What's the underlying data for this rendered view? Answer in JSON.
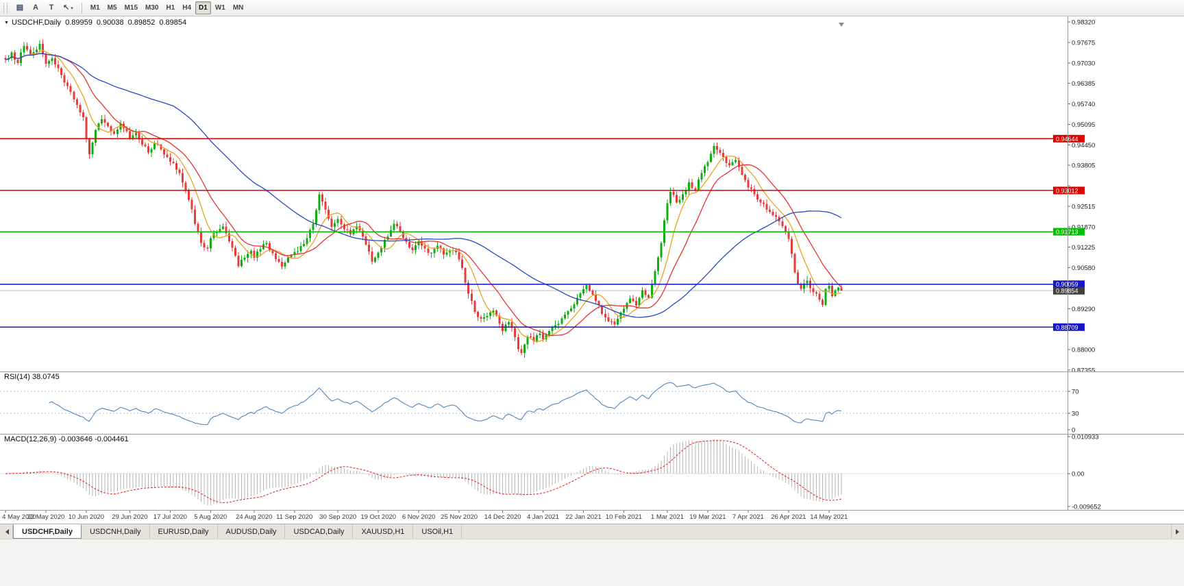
{
  "icons": {
    "chart_menu": "▼",
    "dropdown_caret": "▾"
  },
  "toolbar": {
    "tools": [
      {
        "name": "charts-grid-tool",
        "glyph": "▤"
      },
      {
        "name": "text-annotation-tool",
        "glyph": "A"
      },
      {
        "name": "template-tool",
        "glyph": "T"
      },
      {
        "name": "cursor-tool",
        "glyph": "↖",
        "dropdown": true
      }
    ],
    "timeframes": [
      {
        "label": "M1"
      },
      {
        "label": "M5"
      },
      {
        "label": "M15"
      },
      {
        "label": "M30"
      },
      {
        "label": "H1"
      },
      {
        "label": "H4"
      },
      {
        "label": "D1",
        "active": true
      },
      {
        "label": "W1"
      },
      {
        "label": "MN"
      }
    ]
  },
  "chart": {
    "symbol": "USDCHF,Daily",
    "ohlc": {
      "open": "0.89959",
      "high": "0.90038",
      "low": "0.89852",
      "close": "0.89854"
    },
    "y_axis": {
      "min": 0.87355,
      "max": 0.9832,
      "step": 0.00645,
      "labels": [
        "0.98320",
        "0.97675",
        "0.97030",
        "0.96385",
        "0.95740",
        "0.95095",
        "0.94450",
        "0.93805",
        "0.93160",
        "0.92515",
        "0.91870",
        "0.91225",
        "0.90580",
        "0.89935",
        "0.89290",
        "0.88645",
        "0.88000",
        "0.87355"
      ]
    },
    "levels": [
      {
        "value": 0.94644,
        "label": "0.94644",
        "color": "#e00000"
      },
      {
        "value": 0.93012,
        "label": "0.93012",
        "color": "#e00000"
      },
      {
        "value": 0.91713,
        "label": "0.91713",
        "color": "#00c000"
      },
      {
        "value": 0.90059,
        "label": "0.90059",
        "color": "#1414cc"
      },
      {
        "value": 0.88709,
        "label": "0.88709",
        "color": "#1414cc"
      }
    ],
    "current_price": {
      "value": 0.89854,
      "label": "0.89854",
      "tag_color": "#3f3f3f"
    },
    "x_labels": [
      {
        "i": 0,
        "text": "4 May 2020"
      },
      {
        "i": 13,
        "text": "22 May 2020"
      },
      {
        "i": 26,
        "text": "10 Jun 2020"
      },
      {
        "i": 40,
        "text": "29 Jun 2020"
      },
      {
        "i": 53,
        "text": "17 Jul 2020"
      },
      {
        "i": 66,
        "text": "5 Aug 2020"
      },
      {
        "i": 80,
        "text": "24 Aug 2020"
      },
      {
        "i": 93,
        "text": "11 Sep 2020"
      },
      {
        "i": 107,
        "text": "30 Sep 2020"
      },
      {
        "i": 120,
        "text": "19 Oct 2020"
      },
      {
        "i": 133,
        "text": "6 Nov 2020"
      },
      {
        "i": 146,
        "text": "25 Nov 2020"
      },
      {
        "i": 160,
        "text": "14 Dec 2020"
      },
      {
        "i": 173,
        "text": "4 Jan 2021"
      },
      {
        "i": 186,
        "text": "22 Jan 2021"
      },
      {
        "i": 199,
        "text": "10 Feb 2021"
      },
      {
        "i": 213,
        "text": "1 Mar 2021"
      },
      {
        "i": 226,
        "text": "19 Mar 2021"
      },
      {
        "i": 239,
        "text": "7 Apr 2021"
      },
      {
        "i": 252,
        "text": "26 Apr 2021"
      },
      {
        "i": 265,
        "text": "14 May 2021"
      }
    ],
    "colors": {
      "bull": "#0fae12",
      "bear": "#ea3b3b",
      "axis": "#999999",
      "current_line": "#b8b8b8",
      "background": "#ffffff"
    }
  },
  "rsi_panel": {
    "label": "RSI(14) 38.0745",
    "levels": [
      "70",
      "30",
      "0"
    ],
    "line_color": "#4f86c0",
    "level_line_color": "#a8bdd4"
  },
  "macd_panel": {
    "label": "MACD(12,26,9) -0.003646 -0.004461",
    "axis_labels": [
      "0.010933",
      "0.00",
      "-0.009652"
    ],
    "histogram_color": "#b6b6b6",
    "signal_color": "#e03030"
  },
  "tabs": {
    "items": [
      "USDCHF,Daily",
      "USDCNH,Daily",
      "EURUSD,Daily",
      "AUDUSD,Daily",
      "USDCAD,Daily",
      "XAUUSD,H1",
      "USOil,H1"
    ],
    "active": 0
  },
  "chart_data": {
    "type": "candlestick",
    "symbol": "USDCHF",
    "timeframe": "Daily",
    "bars": 270,
    "y_range": [
      0.87355,
      0.9832
    ],
    "last_ohlc": [
      0.89959,
      0.90038,
      0.89852,
      0.89854
    ],
    "horizontal_levels": [
      0.94644,
      0.93012,
      0.91713,
      0.90059,
      0.88709
    ],
    "moving_averages": [
      {
        "name": "ma-fast",
        "period": 8,
        "color": "#e8a41c"
      },
      {
        "name": "ma-mid",
        "period": 17,
        "color": "#e83030"
      },
      {
        "name": "ma-slow",
        "period": 55,
        "color": "#2846c8"
      }
    ],
    "indicators": [
      {
        "type": "RSI",
        "period": 14,
        "last": 38.0745,
        "levels": [
          70,
          30,
          0
        ]
      },
      {
        "type": "MACD",
        "fast": 12,
        "slow": 26,
        "signal": 9,
        "last_main": -0.003646,
        "last_signal": -0.004461,
        "scale_max": 0.010933,
        "scale_min": -0.009652
      }
    ],
    "close_keypoints": [
      [
        0,
        0.9713
      ],
      [
        2,
        0.9736
      ],
      [
        4,
        0.9702
      ],
      [
        6,
        0.9756
      ],
      [
        8,
        0.9728
      ],
      [
        10,
        0.9745
      ],
      [
        11,
        0.9763
      ],
      [
        13,
        0.97
      ],
      [
        15,
        0.9718
      ],
      [
        17,
        0.9686
      ],
      [
        19,
        0.9641
      ],
      [
        21,
        0.9612
      ],
      [
        23,
        0.9571
      ],
      [
        25,
        0.9532
      ],
      [
        26,
        0.9465
      ],
      [
        27,
        0.9415
      ],
      [
        28,
        0.9452
      ],
      [
        29,
        0.9492
      ],
      [
        31,
        0.9525
      ],
      [
        33,
        0.9504
      ],
      [
        35,
        0.9479
      ],
      [
        37,
        0.9512
      ],
      [
        39,
        0.9488
      ],
      [
        40,
        0.9465
      ],
      [
        42,
        0.9483
      ],
      [
        44,
        0.9446
      ],
      [
        46,
        0.9421
      ],
      [
        48,
        0.9449
      ],
      [
        50,
        0.9431
      ],
      [
        52,
        0.9406
      ],
      [
        54,
        0.9387
      ],
      [
        56,
        0.9356
      ],
      [
        58,
        0.9301
      ],
      [
        60,
        0.9242
      ],
      [
        61,
        0.9196
      ],
      [
        63,
        0.9136
      ],
      [
        65,
        0.9119
      ],
      [
        66,
        0.9151
      ],
      [
        68,
        0.9171
      ],
      [
        70,
        0.9188
      ],
      [
        72,
        0.9141
      ],
      [
        74,
        0.9096
      ],
      [
        75,
        0.9063
      ],
      [
        77,
        0.9089
      ],
      [
        79,
        0.9111
      ],
      [
        80,
        0.9089
      ],
      [
        82,
        0.9117
      ],
      [
        84,
        0.9136
      ],
      [
        86,
        0.9103
      ],
      [
        88,
        0.9076
      ],
      [
        89,
        0.9061
      ],
      [
        91,
        0.9091
      ],
      [
        93,
        0.9108
      ],
      [
        95,
        0.9126
      ],
      [
        97,
        0.9151
      ],
      [
        99,
        0.9196
      ],
      [
        100,
        0.9239
      ],
      [
        101,
        0.9289
      ],
      [
        102,
        0.9267
      ],
      [
        103,
        0.9241
      ],
      [
        105,
        0.9187
      ],
      [
        107,
        0.9211
      ],
      [
        109,
        0.9179
      ],
      [
        111,
        0.9163
      ],
      [
        113,
        0.9189
      ],
      [
        115,
        0.9156
      ],
      [
        117,
        0.9109
      ],
      [
        118,
        0.9077
      ],
      [
        120,
        0.9106
      ],
      [
        122,
        0.9146
      ],
      [
        124,
        0.9177
      ],
      [
        125,
        0.9196
      ],
      [
        127,
        0.9171
      ],
      [
        129,
        0.9139
      ],
      [
        131,
        0.9113
      ],
      [
        133,
        0.9141
      ],
      [
        135,
        0.9119
      ],
      [
        137,
        0.9103
      ],
      [
        139,
        0.9127
      ],
      [
        141,
        0.9099
      ],
      [
        143,
        0.9111
      ],
      [
        145,
        0.9107
      ],
      [
        147,
        0.9057
      ],
      [
        148,
        0.9011
      ],
      [
        149,
        0.8976
      ],
      [
        151,
        0.8919
      ],
      [
        153,
        0.8897
      ],
      [
        155,
        0.8906
      ],
      [
        157,
        0.8923
      ],
      [
        159,
        0.8881
      ],
      [
        160,
        0.8859
      ],
      [
        162,
        0.8887
      ],
      [
        164,
        0.8839
      ],
      [
        165,
        0.8801
      ],
      [
        166,
        0.8789
      ],
      [
        168,
        0.8841
      ],
      [
        170,
        0.8827
      ],
      [
        172,
        0.8851
      ],
      [
        173,
        0.8833
      ],
      [
        175,
        0.8859
      ],
      [
        177,
        0.8877
      ],
      [
        179,
        0.8899
      ],
      [
        181,
        0.8921
      ],
      [
        183,
        0.8943
      ],
      [
        185,
        0.8977
      ],
      [
        187,
        0.9003
      ],
      [
        188,
        0.8986
      ],
      [
        190,
        0.8953
      ],
      [
        192,
        0.8913
      ],
      [
        194,
        0.8889
      ],
      [
        196,
        0.8879
      ],
      [
        198,
        0.8917
      ],
      [
        199,
        0.8929
      ],
      [
        201,
        0.8961
      ],
      [
        203,
        0.8939
      ],
      [
        205,
        0.8987
      ],
      [
        207,
        0.8963
      ],
      [
        208,
        0.9006
      ],
      [
        209,
        0.9047
      ],
      [
        210,
        0.9091
      ],
      [
        211,
        0.9136
      ],
      [
        212,
        0.9207
      ],
      [
        213,
        0.9261
      ],
      [
        214,
        0.9297
      ],
      [
        215,
        0.9287
      ],
      [
        216,
        0.9263
      ],
      [
        218,
        0.9289
      ],
      [
        220,
        0.9327
      ],
      [
        222,
        0.9303
      ],
      [
        224,
        0.9356
      ],
      [
        226,
        0.9391
      ],
      [
        227,
        0.9417
      ],
      [
        228,
        0.9441
      ],
      [
        229,
        0.9429
      ],
      [
        231,
        0.9407
      ],
      [
        233,
        0.9381
      ],
      [
        235,
        0.9397
      ],
      [
        237,
        0.9351
      ],
      [
        239,
        0.9311
      ],
      [
        241,
        0.9289
      ],
      [
        243,
        0.9263
      ],
      [
        245,
        0.9241
      ],
      [
        247,
        0.9223
      ],
      [
        249,
        0.9204
      ],
      [
        251,
        0.9171
      ],
      [
        252,
        0.9149
      ],
      [
        253,
        0.9101
      ],
      [
        254,
        0.9043
      ],
      [
        255,
        0.9007
      ],
      [
        256,
        0.8991
      ],
      [
        258,
        0.9017
      ],
      [
        260,
        0.8981
      ],
      [
        262,
        0.8957
      ],
      [
        263,
        0.8941
      ],
      [
        264,
        0.8991
      ],
      [
        265,
        0.9001
      ],
      [
        266,
        0.8969
      ],
      [
        267,
        0.8987
      ],
      [
        268,
        0.8996
      ],
      [
        269,
        0.89854
      ]
    ]
  }
}
